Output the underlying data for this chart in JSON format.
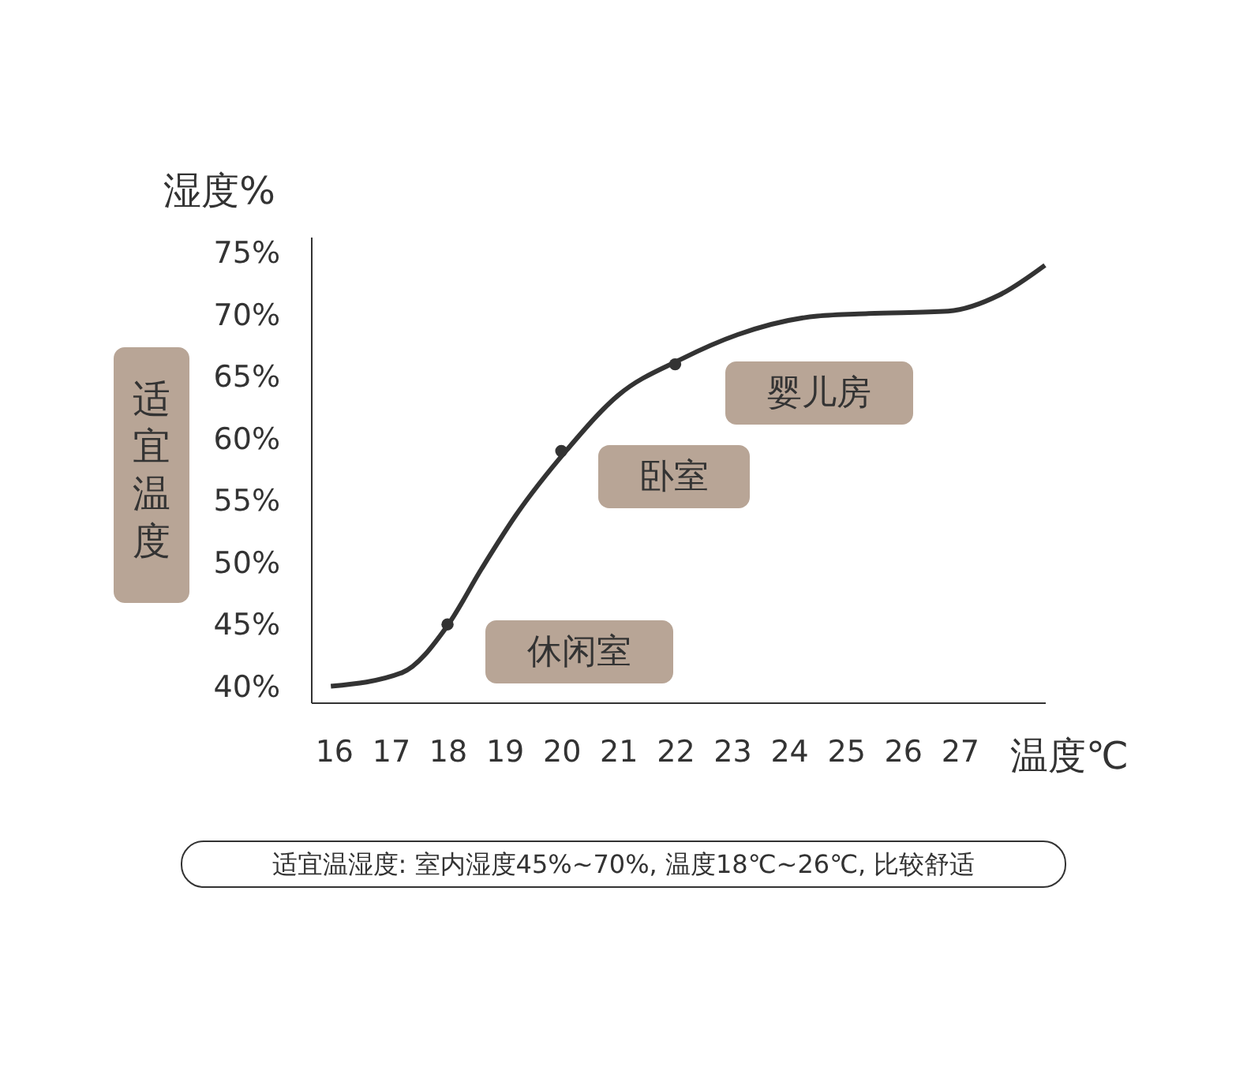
{
  "chart_data": {
    "type": "line",
    "xlabel": "温度℃",
    "ylabel": "湿度%",
    "xlim": [
      15.6,
      28.5
    ],
    "ylim": [
      38.7,
      76.3
    ],
    "xticks": [
      16,
      17,
      18,
      19,
      20,
      21,
      22,
      23,
      24,
      25,
      26,
      27
    ],
    "yticks": [
      {
        "value": 40,
        "label": "40%"
      },
      {
        "value": 45,
        "label": "45%"
      },
      {
        "value": 50,
        "label": "50%"
      },
      {
        "value": 55,
        "label": "55%"
      },
      {
        "value": 60,
        "label": "60%"
      },
      {
        "value": 65,
        "label": "65%"
      },
      {
        "value": 70,
        "label": "70%"
      },
      {
        "value": 75,
        "label": "75%"
      }
    ],
    "grid": false,
    "series": [
      {
        "color": "#333333",
        "marker": "none",
        "x": [
          15.95,
          17.2,
          18.0,
          18.6,
          19.2,
          20.1,
          21.0,
          22.1,
          23.1,
          24.5,
          25.4,
          26.8,
          27.7,
          28.5
        ],
        "values": [
          40,
          41.1,
          44.9,
          49.5,
          53.8,
          59.1,
          63.5,
          66.4,
          68.4,
          69.9,
          70.1,
          70.3,
          71.6,
          74.0
        ]
      },
      {
        "type": "scatter",
        "color": "#333333",
        "marker": "circle",
        "x": [
          18,
          20,
          22
        ],
        "values": [
          45,
          59,
          66
        ]
      }
    ],
    "annotations": [
      "休闲室",
      "卧室",
      "婴儿房",
      "适宜温度",
      "适宜温湿度: 室内湿度45%~70%, 温度18℃~26℃, 比较舒适"
    ]
  }
}
